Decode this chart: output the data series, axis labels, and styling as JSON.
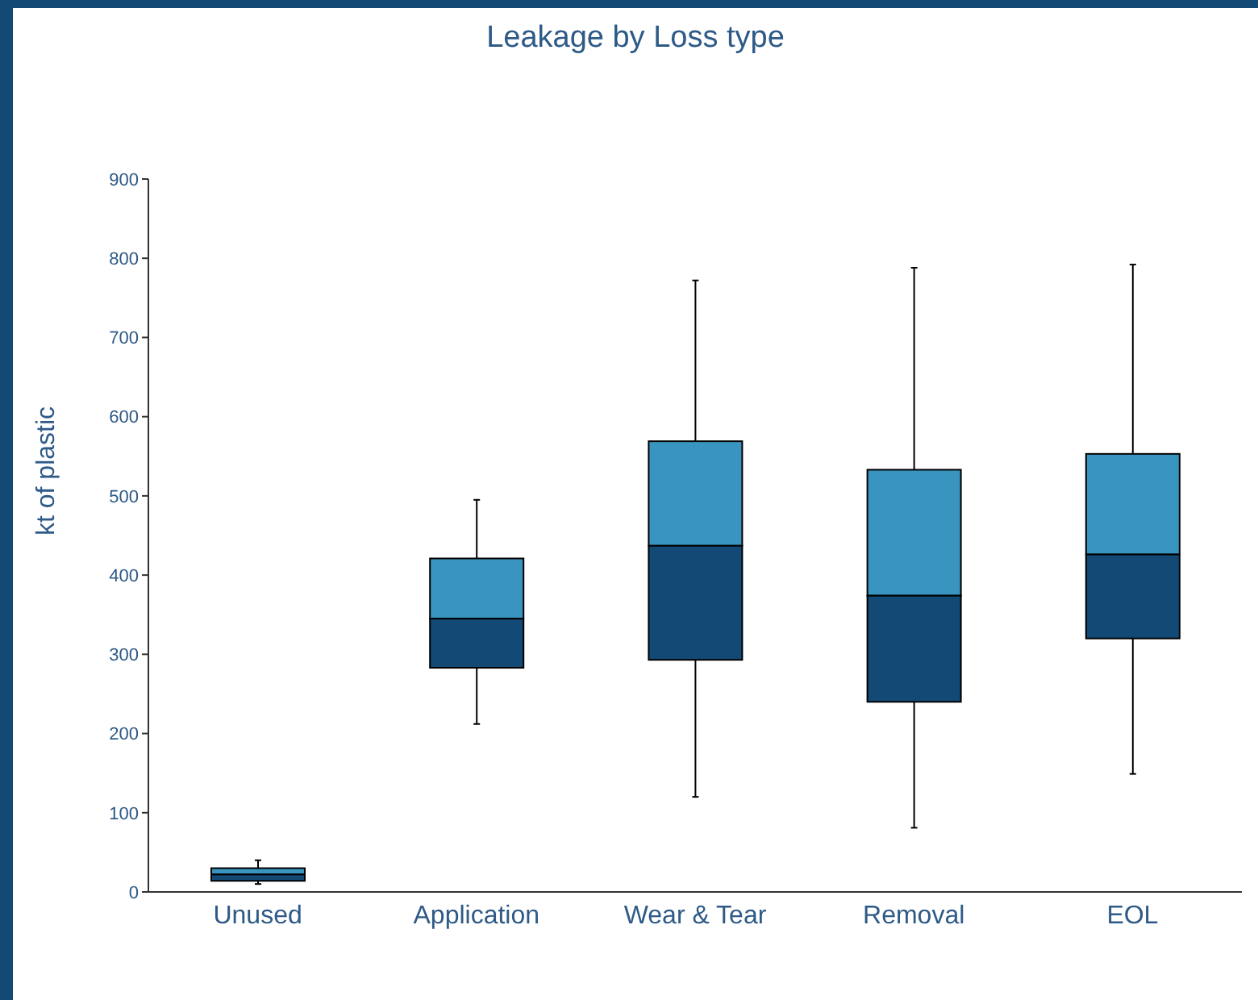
{
  "chart_data": {
    "type": "box",
    "title": "Leakage by Loss type",
    "ylabel": "kt of plastic",
    "categories": [
      "Unused",
      "Application",
      "Wear & Tear",
      "Removal",
      "EOL"
    ],
    "color": "#3a94c0",
    "colors": [
      "#134a75",
      "#134a75",
      "#134a75",
      "#134a75",
      "#134a75"
    ],
    "boxes": [
      {
        "low": 10,
        "q1": 14,
        "median": 22,
        "q3": 30,
        "high": 40
      },
      {
        "low": 212,
        "q1": 283,
        "median": 345,
        "q3": 421,
        "high": 495
      },
      {
        "low": 120,
        "q1": 293,
        "median": 437,
        "q3": 569,
        "high": 772
      },
      {
        "low": 81,
        "q1": 240,
        "median": 374,
        "q3": 533,
        "high": 788
      },
      {
        "low": 149,
        "q1": 320,
        "median": 426,
        "q3": 553,
        "high": 792
      }
    ],
    "ylim": [
      0,
      900
    ],
    "yticks": [
      0,
      100,
      200,
      300,
      400,
      500,
      600,
      700,
      800,
      900
    ],
    "grid": false
  }
}
